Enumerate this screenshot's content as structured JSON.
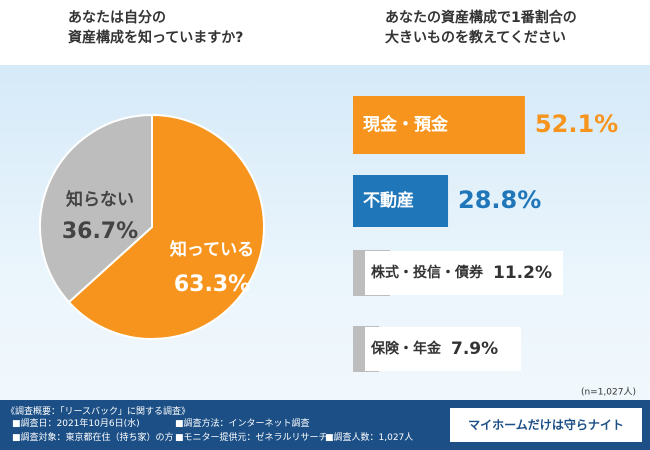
{
  "chart_data": [
    {
      "type": "pie",
      "title": "あなたは自分の\n資産構成を知っていますか?",
      "categories": [
        "知っている",
        "知らない"
      ],
      "values": [
        63.3,
        36.7
      ],
      "value_labels": [
        "63.3%",
        "36.7%"
      ],
      "colors": [
        "#f7941d",
        "#bdbdbd"
      ]
    },
    {
      "type": "hbar",
      "title": "あなたの資産構成で1番割合の\n大きいものを教えてください",
      "categories": [
        "現金・預金",
        "不動産",
        "株式・投信・債券",
        "保険・年金"
      ],
      "values": [
        52.1,
        28.8,
        11.2,
        7.9
      ],
      "value_labels": [
        "52.1%",
        "28.8%",
        "11.2%",
        "7.9%"
      ],
      "colors": [
        "#f7941d",
        "#1f76b9",
        "#bdbdbd",
        "#bdbdbd"
      ],
      "value_colors": [
        "#f7941d",
        "#1f76b9",
        "#333333",
        "#333333"
      ],
      "note": "(n=1,027人)"
    }
  ],
  "footer": {
    "heading": "《調査概要：「リースバック」に関する調査》",
    "items": [
      "■調査日：2021年10月6日(水)",
      "■調査方法：インターネット調査",
      "■調査対象：東京都在住（持ち家）の方",
      "■モニター提供元：ゼネラルリサーチ",
      "■調査人数：1,027人"
    ],
    "logo": "マイホームだけは守らナイト"
  }
}
